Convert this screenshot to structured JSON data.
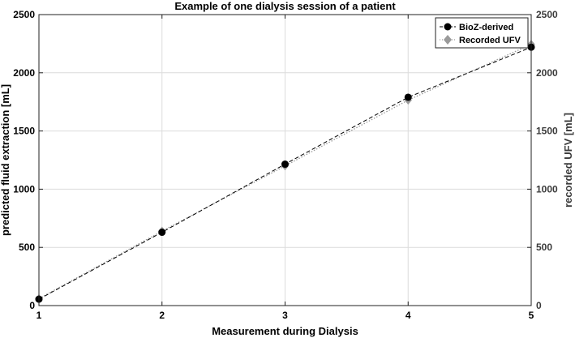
{
  "chart_data": {
    "type": "line",
    "title": "Example of one dialysis session of a patient",
    "xlabel": "Measurement during Dialysis",
    "ylabel": "predicted fluid  extraction [mL]",
    "ylabel_right": "recorded UFV [mL]",
    "x": [
      1,
      2,
      3,
      4,
      5
    ],
    "xlim": [
      1,
      5
    ],
    "ylim": [
      0,
      2500
    ],
    "ylim_right": [
      0,
      2500
    ],
    "x_ticks": [
      "1",
      "2",
      "3",
      "4",
      "5"
    ],
    "y_ticks": [
      "0",
      "500",
      "1000",
      "1500",
      "2000",
      "2500"
    ],
    "y_ticks_right": [
      "0",
      "500",
      "1000",
      "1500",
      "2000",
      "2500"
    ],
    "grid": true,
    "legend_position": "top-right",
    "series": [
      {
        "name": "BioZ-derived",
        "values": [
          55,
          630,
          1215,
          1790,
          2220
        ],
        "color": "#000000",
        "marker": "circle",
        "line": "dashed"
      },
      {
        "name": "Recorded UFV",
        "values": [
          60,
          640,
          1200,
          1765,
          2245
        ],
        "color": "#9a9a9a",
        "marker": "diamond",
        "line": "dotted"
      }
    ]
  }
}
